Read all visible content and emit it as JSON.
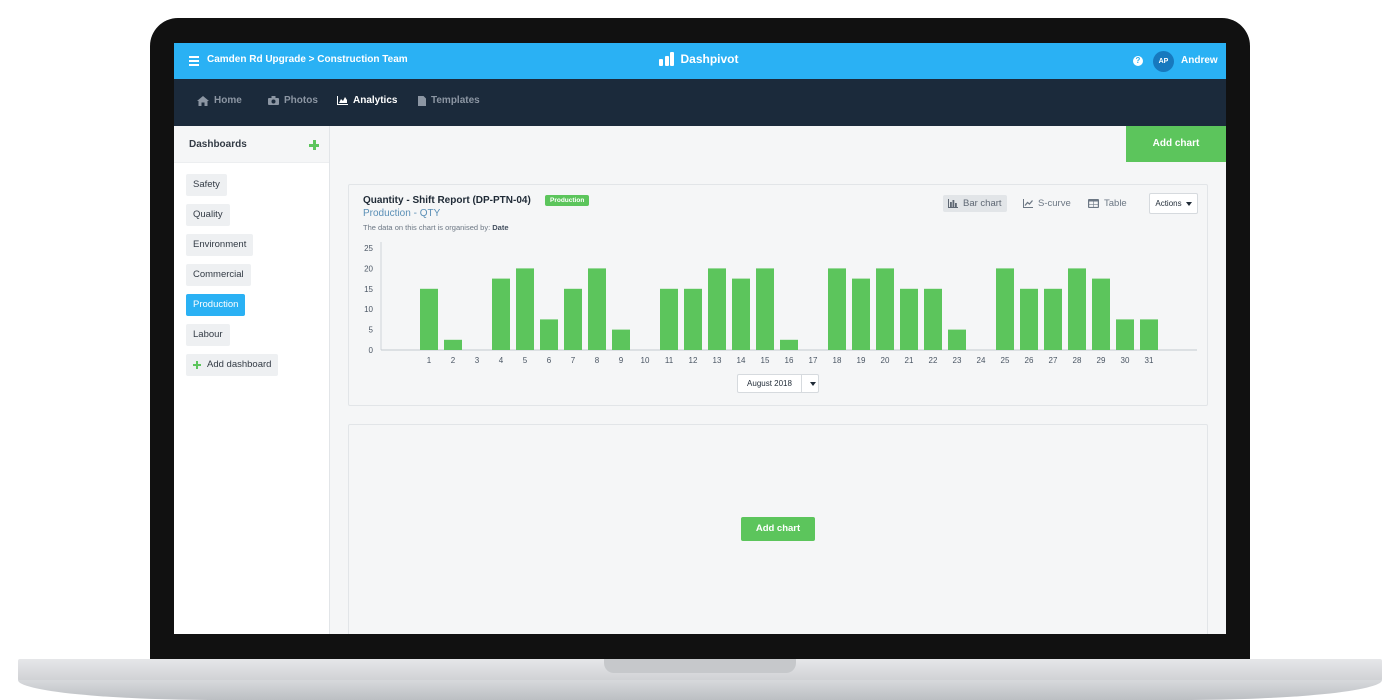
{
  "header": {
    "breadcrumb": "Camden Rd Upgrade > Construction Team",
    "logo_text": "Dashpivot",
    "help_icon": "?",
    "avatar_initials": "AP",
    "user_name": "Andrew"
  },
  "nav": {
    "items": [
      {
        "label": "Home",
        "icon": "home-icon"
      },
      {
        "label": "Photos",
        "icon": "camera-icon"
      },
      {
        "label": "Analytics",
        "icon": "area-chart-icon",
        "active": true
      },
      {
        "label": "Templates",
        "icon": "file-icon"
      }
    ]
  },
  "sidebar": {
    "title": "Dashboards",
    "items": [
      "Safety",
      "Quality",
      "Environment",
      "Commercial",
      "Production",
      "Labour"
    ],
    "active_item": "Production",
    "add_label": "Add dashboard"
  },
  "main": {
    "add_chart_label": "Add chart",
    "card": {
      "title": "Quantity - Shift Report (DP-PTN-04)",
      "badge": "Production",
      "subtitle": "Production - QTY",
      "note_prefix": "The data on this chart is organised by:",
      "note_value": "Date",
      "views": [
        {
          "label": "Bar chart",
          "icon": "bar-chart-icon",
          "active": true
        },
        {
          "label": "S-curve",
          "icon": "line-chart-icon"
        },
        {
          "label": "Table",
          "icon": "table-icon"
        }
      ],
      "actions_label": "Actions",
      "month_select": "August 2018"
    },
    "empty_card_add_label": "Add chart"
  },
  "colors": {
    "brand_blue": "#2ab1f4",
    "nav_dark": "#1b2a3b",
    "accent_green": "#5cc55c"
  },
  "chart_data": {
    "type": "bar",
    "categories": [
      "1",
      "2",
      "3",
      "4",
      "5",
      "6",
      "7",
      "8",
      "9",
      "10",
      "11",
      "12",
      "13",
      "14",
      "15",
      "16",
      "17",
      "18",
      "19",
      "20",
      "21",
      "22",
      "23",
      "24",
      "25",
      "26",
      "27",
      "28",
      "29",
      "30",
      "31"
    ],
    "values": [
      15,
      2.5,
      0,
      17.5,
      20,
      7.5,
      15,
      20,
      5,
      0,
      15,
      15,
      20,
      17.5,
      20,
      2.5,
      0,
      20,
      17.5,
      20,
      15,
      15,
      5,
      0,
      20,
      15,
      15,
      20,
      17.5,
      7.5,
      7.5
    ],
    "yticks": [
      0,
      5,
      10,
      15,
      20,
      25
    ],
    "ylim": [
      0,
      25
    ],
    "grid": false,
    "legend": "none",
    "bar_color": "#5cc55c"
  }
}
